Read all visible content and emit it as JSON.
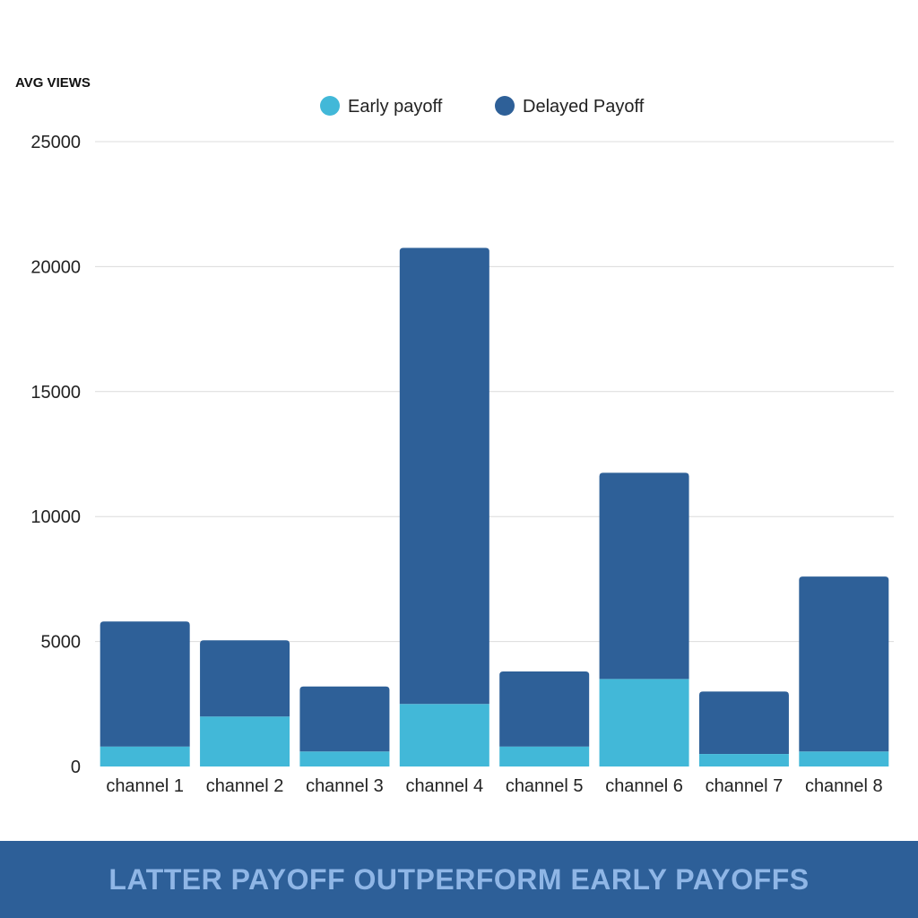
{
  "banner": {
    "text": "LATTER PAYOFF OUTPERFORM EARLY PAYOFFS"
  },
  "colors": {
    "early": "#42b8d8",
    "delayed": "#2e6098",
    "banner_bg": "#2d5f98",
    "banner_text": "#8fb6e6"
  },
  "chart_data": {
    "type": "bar",
    "stacked": true,
    "ylabel": "AVG VIEWS",
    "xlabel": "",
    "ylim": [
      0,
      25000
    ],
    "yticks": [
      0,
      5000,
      10000,
      15000,
      20000,
      25000
    ],
    "grid": true,
    "legend": "top-center",
    "categories": [
      "channel 1",
      "channel 2",
      "channel 3",
      "channel 4",
      "channel 5",
      "channel 6",
      "channel 7",
      "channel 8"
    ],
    "series": [
      {
        "name": "Early payoff",
        "values": [
          800,
          2000,
          600,
          2500,
          800,
          3500,
          500,
          600
        ]
      },
      {
        "name": "Delayed Payoff",
        "values": [
          5000,
          3050,
          2600,
          18250,
          3000,
          8250,
          2500,
          7000
        ]
      }
    ]
  }
}
